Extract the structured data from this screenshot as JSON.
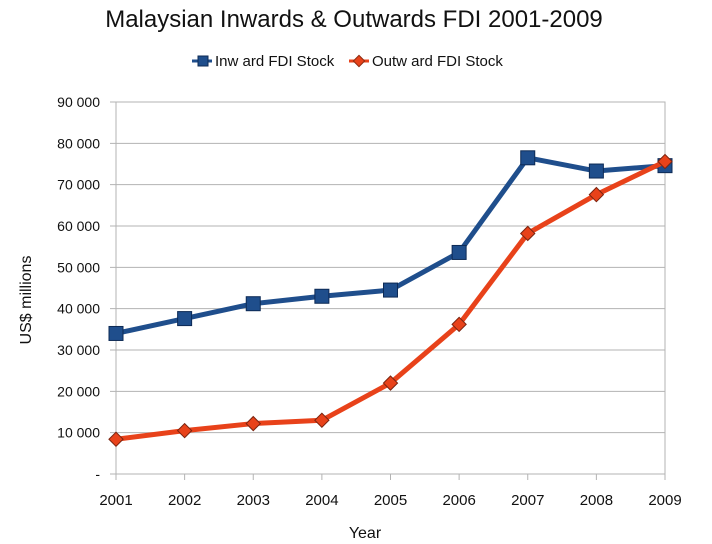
{
  "chart_data": {
    "type": "line",
    "title": "Malaysian Inwards & Outwards FDI 2001-2009",
    "xlabel": "Year",
    "ylabel": "US$ millions",
    "categories": [
      "2001",
      "2002",
      "2003",
      "2004",
      "2005",
      "2006",
      "2007",
      "2008",
      "2009"
    ],
    "y_ticks": [
      0,
      10000,
      20000,
      30000,
      40000,
      50000,
      60000,
      70000,
      80000,
      90000
    ],
    "y_tick_labels": [
      "-",
      "10 000",
      "20 000",
      "30 000",
      "40 000",
      "50 000",
      "60 000",
      "70 000",
      "80 000",
      "90 000"
    ],
    "ylim": [
      0,
      90000
    ],
    "grid": true,
    "legend_position": "top",
    "series": [
      {
        "name": "Inw ard FDI Stock",
        "color": "#1f4e8c",
        "marker": "square",
        "values": [
          34000,
          37600,
          41200,
          43000,
          44500,
          53600,
          76500,
          73300,
          74600
        ]
      },
      {
        "name": "Outw ard FDI Stock",
        "color": "#e8421a",
        "marker": "diamond",
        "values": [
          8400,
          10500,
          12200,
          13000,
          22000,
          36200,
          58200,
          67600,
          75600
        ]
      }
    ]
  }
}
